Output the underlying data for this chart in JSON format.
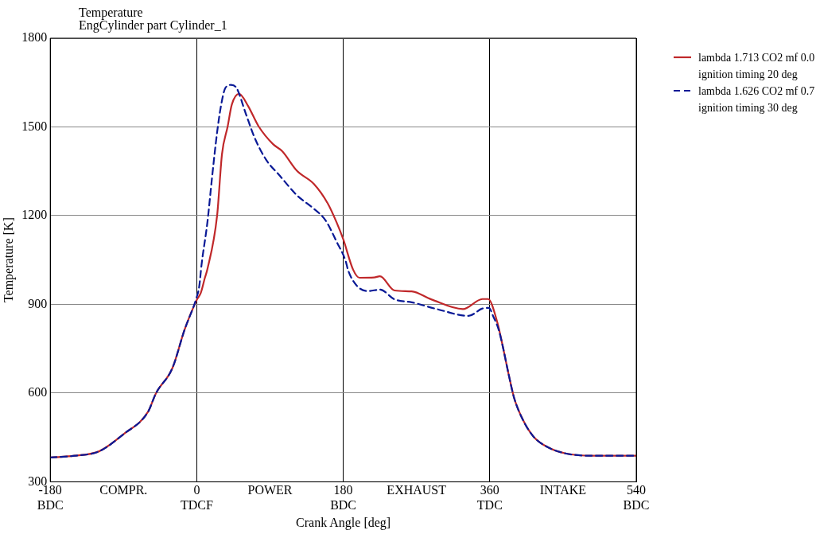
{
  "chart_data": {
    "type": "line",
    "title": "Temperature",
    "subtitle": "EngCylinder part Cylinder_1",
    "xlabel": "Crank Angle [deg]",
    "ylabel": "Temperature [K]",
    "xlim": [
      -180,
      540
    ],
    "ylim": [
      300,
      1800
    ],
    "xticks": [
      {
        "value": -180,
        "label": "-180\nBDC"
      },
      {
        "value": -90,
        "label": "COMPR."
      },
      {
        "value": 0,
        "label": "0\nTDCF"
      },
      {
        "value": 90,
        "label": "POWER"
      },
      {
        "value": 180,
        "label": "180\nBDC"
      },
      {
        "value": 270,
        "label": "EXHAUST"
      },
      {
        "value": 360,
        "label": "360\nTDC"
      },
      {
        "value": 450,
        "label": "INTAKE"
      },
      {
        "value": 540,
        "label": "540\nBDC"
      }
    ],
    "yticks": [
      300,
      600,
      900,
      1200,
      1500,
      1800
    ],
    "grid": true,
    "legend": "right",
    "marker": "none",
    "series": [
      {
        "name": "lambda 1.713 CO2 mf 0.0\nignition timing 20 deg",
        "color": "#c0282a",
        "line_style": "solid",
        "x": [
          -180,
          -150,
          -120,
          -90,
          -60,
          -50,
          -30,
          -15,
          0,
          5,
          10,
          13,
          25,
          31,
          38,
          43,
          52,
          63,
          76,
          94,
          105,
          123,
          144,
          161,
          172,
          180,
          192,
          200,
          218,
          225,
          243,
          264,
          288,
          327,
          351,
          358,
          369,
          376,
          383,
          390,
          401,
          414,
          432,
          453,
          488,
          540
        ],
        "values": [
          382,
          388,
          403,
          461,
          536,
          600,
          684,
          814,
          915,
          939,
          990,
          1018,
          1200,
          1408,
          1502,
          1575,
          1612,
          1571,
          1502,
          1441,
          1418,
          1352,
          1307,
          1241,
          1176,
          1120,
          1018,
          990,
          991,
          995,
          947,
          944,
          917,
          884,
          918,
          918,
          842,
          758,
          666,
          583,
          508,
          452,
          416,
          396,
          388,
          388
        ]
      },
      {
        "name": "lambda 1.626 CO2 mf 0.7\nignition timing 30 deg",
        "color": "#0a1a96",
        "line_style": "dashed",
        "x": [
          -180,
          -150,
          -120,
          -90,
          -60,
          -50,
          -30,
          -15,
          0,
          3,
          6,
          13,
          19,
          25,
          30,
          35,
          42,
          49,
          60,
          71,
          85,
          102,
          123,
          144,
          158,
          172,
          183,
          186,
          197,
          211,
          225,
          243,
          264,
          295,
          334,
          351,
          359,
          364,
          371,
          376,
          383,
          390,
          401,
          414,
          432,
          453,
          488,
          540
        ],
        "values": [
          382,
          388,
          403,
          461,
          536,
          600,
          684,
          814,
          925,
          960,
          1037,
          1176,
          1335,
          1482,
          1575,
          1631,
          1642,
          1631,
          1547,
          1464,
          1390,
          1335,
          1269,
          1223,
          1185,
          1111,
          1046,
          1015,
          962,
          945,
          950,
          917,
          907,
          884,
          861,
          886,
          888,
          861,
          814,
          758,
          666,
          583,
          508,
          452,
          416,
          396,
          388,
          388
        ]
      }
    ]
  }
}
